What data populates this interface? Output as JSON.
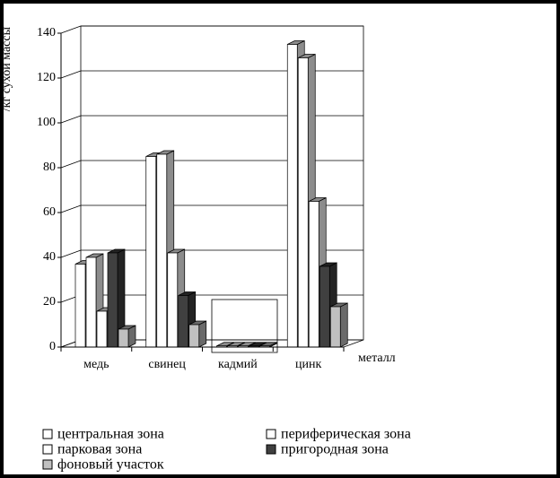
{
  "chart_data": {
    "type": "bar3d",
    "y_label": "/кг сухой массы",
    "x_label": "металл",
    "categories": [
      "медь",
      "свинец",
      "кадмий",
      "цинк"
    ],
    "series": [
      {
        "name": "центральная зона",
        "color": "#ffffff",
        "values": [
          37,
          85,
          0.5,
          135
        ]
      },
      {
        "name": "периферическая зона",
        "color": "#ffffff",
        "values": [
          40,
          86,
          0.5,
          129
        ]
      },
      {
        "name": "парковая зона",
        "color": "#ffffff",
        "values": [
          16,
          42,
          0.5,
          65
        ]
      },
      {
        "name": "пригородная зона",
        "color": "#404040",
        "values": [
          42,
          23,
          0.5,
          36
        ]
      },
      {
        "name": "фоновый участок",
        "color": "#c0c0c0",
        "values": [
          8,
          10,
          0.5,
          18
        ]
      }
    ],
    "ylim": [
      0,
      140
    ],
    "yticks": [
      0,
      20,
      40,
      60,
      80,
      100,
      120,
      140
    ],
    "grid": true
  }
}
